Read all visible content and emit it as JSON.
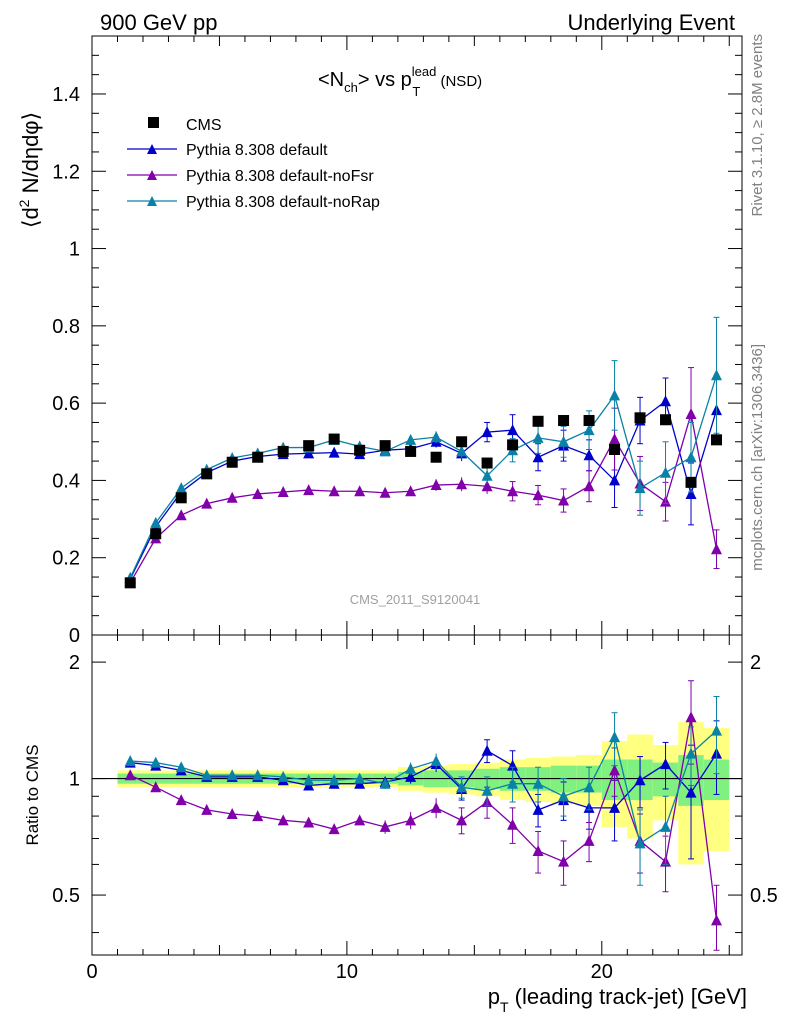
{
  "header": {
    "left": "900 GeV pp",
    "right": "Underlying Event"
  },
  "side_labels": {
    "rivet": "Rivet 3.1.10, ≥ 2.8M events",
    "mcplots": "mcplots.cern.ch [arXiv:1306.3436]"
  },
  "watermark": "CMS_2011_S9120041",
  "colors": {
    "cms": "#000000",
    "default": "#0000cc",
    "noFsr": "#8000aa",
    "noRap": "#0a82a8",
    "band_outer": "#ffff80",
    "band_inner": "#80f080"
  },
  "chart_data": [
    {
      "type": "scatter",
      "title_parts": {
        "base": "<N",
        "sub1": "ch",
        "mid": "> vs p",
        "sup": "lead",
        "sub2": "T",
        "tail": " (NSD)"
      },
      "ylabel_parts": {
        "open": "⟨d",
        "sup": "2",
        "rest": " N/dηdφ⟩"
      },
      "xlim": [
        0,
        25.5
      ],
      "ylim": [
        0,
        1.55
      ],
      "yticks": [
        0,
        0.2,
        0.4,
        0.6,
        0.8,
        1,
        1.2,
        1.4
      ],
      "ytick_labels": [
        "0",
        "0.2",
        "0.4",
        "0.6",
        "0.8",
        "1",
        "1.2",
        "1.4"
      ],
      "legend_position": "top-left",
      "legend": [
        "CMS",
        "Pythia 8.308 default",
        "Pythia 8.308 default-noFsr",
        "Pythia 8.308 default-noRap"
      ],
      "x": [
        1.5,
        2.5,
        3.5,
        4.5,
        5.5,
        6.5,
        7.5,
        8.5,
        9.5,
        10.5,
        11.5,
        12.5,
        13.5,
        14.5,
        15.5,
        16.5,
        17.5,
        18.5,
        19.5,
        20.5,
        21.5,
        22.5,
        23.5,
        24.5
      ],
      "series": [
        {
          "name": "CMS",
          "marker": "square",
          "values": [
            0.135,
            0.262,
            0.355,
            0.417,
            0.447,
            0.46,
            0.475,
            0.49,
            0.507,
            0.478,
            0.49,
            0.475,
            0.46,
            0.5,
            0.445,
            0.492,
            0.553,
            0.555,
            0.555,
            0.48,
            0.562,
            0.557,
            0.395,
            0.505
          ]
        },
        {
          "name": "Pythia 8.308 default",
          "marker": "triangle",
          "values": [
            0.145,
            0.28,
            0.37,
            0.42,
            0.45,
            0.462,
            0.468,
            0.47,
            0.472,
            0.468,
            0.478,
            0.482,
            0.5,
            0.47,
            0.525,
            0.53,
            0.46,
            0.49,
            0.465,
            0.4,
            0.555,
            0.605,
            0.365,
            0.582
          ],
          "errors": [
            0.004,
            0.004,
            0.004,
            0.004,
            0.004,
            0.004,
            0.005,
            0.005,
            0.006,
            0.007,
            0.008,
            0.01,
            0.015,
            0.02,
            0.025,
            0.04,
            0.035,
            0.04,
            0.04,
            0.07,
            0.06,
            0.06,
            0.08,
            0.08
          ]
        },
        {
          "name": "Pythia 8.308 default-noFsr",
          "marker": "triangle",
          "values": [
            0.135,
            0.25,
            0.31,
            0.34,
            0.355,
            0.365,
            0.37,
            0.375,
            0.372,
            0.372,
            0.368,
            0.372,
            0.388,
            0.39,
            0.385,
            0.372,
            0.362,
            0.348,
            0.385,
            0.507,
            0.392,
            0.345,
            0.572,
            0.222
          ],
          "errors": [
            0.004,
            0.004,
            0.004,
            0.004,
            0.004,
            0.004,
            0.005,
            0.005,
            0.006,
            0.007,
            0.008,
            0.01,
            0.015,
            0.018,
            0.02,
            0.025,
            0.025,
            0.03,
            0.04,
            0.08,
            0.07,
            0.05,
            0.12,
            0.05
          ]
        },
        {
          "name": "Pythia 8.308 default-noRap",
          "marker": "triangle",
          "values": [
            0.148,
            0.29,
            0.38,
            0.428,
            0.458,
            0.47,
            0.485,
            0.485,
            0.505,
            0.488,
            0.475,
            0.505,
            0.512,
            0.475,
            0.412,
            0.478,
            0.51,
            0.5,
            0.53,
            0.62,
            0.38,
            0.42,
            0.46,
            0.672
          ],
          "errors": [
            0.004,
            0.004,
            0.004,
            0.004,
            0.004,
            0.004,
            0.005,
            0.005,
            0.006,
            0.007,
            0.008,
            0.01,
            0.015,
            0.018,
            0.02,
            0.03,
            0.04,
            0.04,
            0.05,
            0.09,
            0.07,
            0.08,
            0.09,
            0.15
          ]
        }
      ]
    },
    {
      "type": "scatter",
      "ylabel": "Ratio to CMS",
      "xlabel_parts": {
        "p": "p",
        "sub": "T",
        "rest": " (leading track-jet) [GeV]"
      },
      "xlim": [
        0,
        25.5
      ],
      "ylim": [
        0.35,
        2.35
      ],
      "yscale": "log",
      "xticks": [
        0,
        10,
        20
      ],
      "xtick_labels": [
        "0",
        "10",
        "20"
      ],
      "yticks": [
        0.5,
        1,
        2
      ],
      "ytick_labels": [
        "0.5",
        "1",
        "2"
      ],
      "x": [
        1.5,
        2.5,
        3.5,
        4.5,
        5.5,
        6.5,
        7.5,
        8.5,
        9.5,
        10.5,
        11.5,
        12.5,
        13.5,
        14.5,
        15.5,
        16.5,
        17.5,
        18.5,
        19.5,
        20.5,
        21.5,
        22.5,
        23.5,
        24.5
      ],
      "band_inner": [
        0.03,
        0.03,
        0.03,
        0.03,
        0.03,
        0.03,
        0.03,
        0.03,
        0.03,
        0.03,
        0.03,
        0.04,
        0.05,
        0.05,
        0.06,
        0.07,
        0.07,
        0.08,
        0.08,
        0.12,
        0.12,
        0.1,
        0.15,
        0.12
      ],
      "band_outer": [
        0.05,
        0.05,
        0.05,
        0.05,
        0.05,
        0.05,
        0.05,
        0.05,
        0.05,
        0.05,
        0.05,
        0.07,
        0.08,
        0.09,
        0.1,
        0.12,
        0.13,
        0.14,
        0.15,
        0.25,
        0.3,
        0.22,
        0.4,
        0.35
      ],
      "series": [
        {
          "name": "Pythia 8.308 default",
          "values": [
            1.1,
            1.08,
            1.05,
            1.01,
            1.01,
            1.01,
            0.99,
            0.96,
            0.97,
            0.97,
            0.98,
            1.01,
            1.09,
            0.94,
            1.18,
            1.08,
            0.83,
            0.88,
            0.84,
            0.84,
            0.99,
            1.09,
            0.92,
            1.16
          ],
          "errors": [
            0.02,
            0.02,
            0.02,
            0.02,
            0.02,
            0.02,
            0.02,
            0.02,
            0.02,
            0.02,
            0.03,
            0.04,
            0.05,
            0.06,
            0.08,
            0.1,
            0.08,
            0.1,
            0.1,
            0.15,
            0.15,
            0.15,
            0.3,
            0.25
          ]
        },
        {
          "name": "Pythia 8.308 default-noFsr",
          "values": [
            1.02,
            0.95,
            0.88,
            0.83,
            0.81,
            0.8,
            0.78,
            0.77,
            0.74,
            0.78,
            0.75,
            0.78,
            0.84,
            0.78,
            0.87,
            0.76,
            0.65,
            0.61,
            0.69,
            1.05,
            0.69,
            0.61,
            1.44,
            0.43
          ],
          "errors": [
            0.02,
            0.02,
            0.02,
            0.02,
            0.02,
            0.02,
            0.02,
            0.02,
            0.02,
            0.02,
            0.03,
            0.04,
            0.05,
            0.06,
            0.08,
            0.08,
            0.08,
            0.08,
            0.08,
            0.15,
            0.12,
            0.1,
            0.35,
            0.1
          ]
        },
        {
          "name": "Pythia 8.308 default-noRap",
          "values": [
            1.11,
            1.1,
            1.07,
            1.02,
            1.02,
            1.02,
            1.01,
            0.99,
            0.99,
            1.0,
            0.97,
            1.06,
            1.11,
            0.95,
            0.93,
            0.97,
            0.97,
            0.9,
            0.95,
            1.28,
            0.68,
            0.75,
            1.16,
            1.33
          ],
          "errors": [
            0.02,
            0.02,
            0.02,
            0.02,
            0.02,
            0.02,
            0.02,
            0.02,
            0.02,
            0.02,
            0.03,
            0.04,
            0.05,
            0.06,
            0.08,
            0.1,
            0.1,
            0.1,
            0.12,
            0.2,
            0.15,
            0.15,
            0.2,
            0.3
          ]
        }
      ]
    }
  ]
}
